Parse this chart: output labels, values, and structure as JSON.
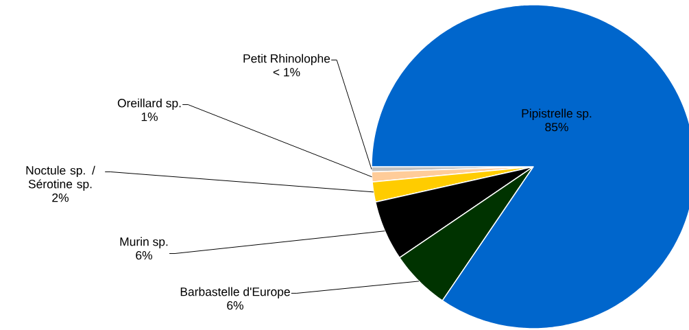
{
  "chart_data": {
    "type": "pie",
    "categories": [
      "Petit Rhinolophe",
      "Oreillard sp.",
      "Noctule sp. / Sérotine sp.",
      "Murin sp.",
      "Barbastelle d'Europe",
      "Pipistrelle sp."
    ],
    "values": [
      0.5,
      1,
      2,
      6,
      6,
      84.5
    ],
    "value_labels": [
      "< 1%",
      "1%",
      "2%",
      "6%",
      "6%",
      "85%"
    ],
    "colors": [
      "#c0c0c0",
      "#ffcc99",
      "#ffcc00",
      "#000000",
      "#003300",
      "#0066cc"
    ]
  }
}
